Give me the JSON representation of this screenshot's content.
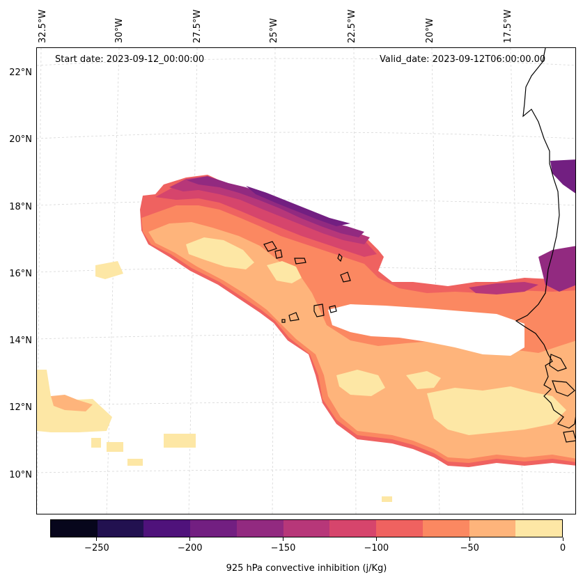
{
  "header": {
    "start_date": "Start date: 2023-09-12_00:00:00",
    "valid_date": "Valid_date: 2023-09-12T06:00:00.00"
  },
  "map": {
    "latitude_labels": [
      "22°N",
      "20°N",
      "18°N",
      "16°N",
      "14°N",
      "12°N",
      "10°N"
    ],
    "longitude_labels": [
      "32.5°W",
      "30°W",
      "27.5°W",
      "25°W",
      "22.5°W",
      "20°W",
      "17.5°W"
    ],
    "variable": "925 hPa convective inhibition",
    "units": "j/Kg",
    "features": [
      "coastline",
      "gridlines",
      "filled-contours"
    ]
  },
  "colorbar": {
    "label": "925 hPa convective inhibition (j/Kg)",
    "levels": [
      -275,
      -250,
      -225,
      -200,
      -175,
      -150,
      -125,
      -100,
      -75,
      -50,
      -25,
      0
    ],
    "colors": [
      "#07061c",
      "#221150",
      "#4f127b",
      "#721f81",
      "#922a80",
      "#b73779",
      "#d6456c",
      "#ef6260",
      "#fb8861",
      "#feb47b",
      "#fde7a5"
    ],
    "tick_labels": [
      "−250",
      "−200",
      "−150",
      "−100",
      "−50",
      "0"
    ]
  }
}
